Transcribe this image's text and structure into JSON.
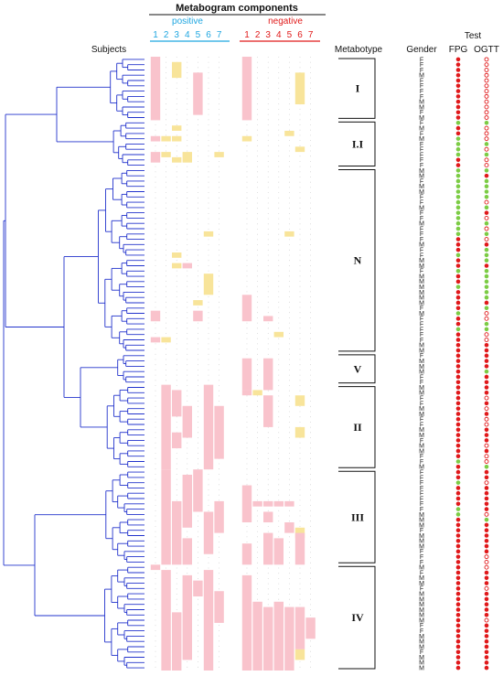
{
  "header": {
    "title": "Metabogram components",
    "positive_label": "positive",
    "negative_label": "negative",
    "positive_numbers": [
      "1",
      "2",
      "3",
      "4",
      "5",
      "6",
      "7"
    ],
    "negative_numbers": [
      "1",
      "2",
      "3",
      "4",
      "5",
      "6",
      "7"
    ],
    "subjects_label": "Subjects",
    "metabotype_label": "Metabotype",
    "gender_label": "Gender",
    "test_label": "Test",
    "fpg_label": "FPG",
    "ogtt_label": "OGTT"
  },
  "colors": {
    "positive": "#1fa6e0",
    "negative": "#e01b1b",
    "dendrogram": "#2233cc",
    "pink": "#f9c3cc",
    "yellow": "#f8e49a",
    "dot_red": "#e0191b",
    "dot_green": "#7ccc45"
  },
  "metabotypes": [
    {
      "label": "I",
      "start": 0,
      "end": 12
    },
    {
      "label": "I.I",
      "start": 12,
      "end": 21
    },
    {
      "label": "N",
      "start": 21,
      "end": 56
    },
    {
      "label": "V",
      "start": 56,
      "end": 62
    },
    {
      "label": "II",
      "start": 62,
      "end": 78
    },
    {
      "label": "III",
      "start": 78,
      "end": 96
    },
    {
      "label": "IV",
      "start": 96,
      "end": 116
    }
  ],
  "genders": [
    "F",
    "F",
    "F",
    "M",
    "F",
    "F",
    "F",
    "F",
    "M",
    "M",
    "F",
    "M",
    "F",
    "M",
    "F",
    "M",
    "F",
    "F",
    "F",
    "F",
    "F",
    "M",
    "M",
    "F",
    "M",
    "M",
    "F",
    "F",
    "M",
    "F",
    "F",
    "M",
    "F",
    "F",
    "F",
    "M",
    "F",
    "F",
    "M",
    "M",
    "F",
    "M",
    "M",
    "M",
    "M",
    "M",
    "M",
    "F",
    "M",
    "F",
    "F",
    "F",
    "F",
    "F",
    "M",
    "M",
    "F",
    "M",
    "M",
    "M",
    "F",
    "F",
    "M",
    "M",
    "F",
    "F",
    "M",
    "M",
    "F",
    "F",
    "M",
    "M",
    "F",
    "M",
    "M",
    "F",
    "F",
    "M",
    "F",
    "F",
    "F",
    "F",
    "F",
    "F",
    "F",
    "F",
    "M",
    "M",
    "M",
    "F",
    "M",
    "M",
    "M",
    "F",
    "F",
    "F",
    "M",
    "F",
    "M",
    "M",
    "F",
    "M",
    "M",
    "M",
    "M",
    "M",
    "M",
    "F",
    "F",
    "M",
    "M",
    "M",
    "F",
    "M",
    "M",
    "M"
  ],
  "fpg": [
    "R",
    "R",
    "R",
    "R",
    "R",
    "R",
    "R",
    "R",
    "R",
    "R",
    "R",
    "R",
    "G",
    "R",
    "R",
    "G",
    "G",
    "G",
    "G",
    "R",
    "R",
    "G",
    "G",
    "G",
    "G",
    "G",
    "G",
    "G",
    "G",
    "G",
    "G",
    "G",
    "G",
    "G",
    "R",
    "R",
    "R",
    "G",
    "R",
    "R",
    "G",
    "R",
    "R",
    "G",
    "R",
    "R",
    "R",
    "R",
    "G",
    "R",
    "R",
    "G",
    "R",
    "R",
    "R",
    "R",
    "R",
    "R",
    "R",
    "R",
    "R",
    "R",
    "R",
    "R",
    "R",
    "R",
    "R",
    "R",
    "R",
    "R",
    "R",
    "R",
    "R",
    "R",
    "R",
    "R",
    "G",
    "R",
    "R",
    "R",
    "G",
    "R",
    "R",
    "R",
    "R",
    "G",
    "G",
    "R",
    "R",
    "R",
    "R",
    "R",
    "R",
    "R",
    "R",
    "R",
    "R",
    "R",
    "R",
    "R",
    "R",
    "R",
    "R",
    "R",
    "R",
    "R",
    "R",
    "R",
    "R",
    "R",
    "R",
    "R",
    "R",
    "R",
    "R",
    "R"
  ],
  "ogtt": [
    "O",
    "O",
    "O",
    "O",
    "O",
    "O",
    "O",
    "O",
    "O",
    "O",
    "O",
    "O",
    "G",
    "O",
    "O",
    "O",
    "G",
    "O",
    "G",
    "O",
    "O",
    "G",
    "R",
    "G",
    "G",
    "G",
    "G",
    "O",
    "G",
    "R",
    "O",
    "G",
    "O",
    "G",
    "O",
    "R",
    "G",
    "G",
    "G",
    "R",
    "G",
    "G",
    "G",
    "G",
    "G",
    "G",
    "R",
    "G",
    "O",
    "O",
    "G",
    "G",
    "O",
    "O",
    "R",
    "R",
    "R",
    "R",
    "R",
    "G",
    "R",
    "R",
    "R",
    "R",
    "O",
    "R",
    "O",
    "R",
    "O",
    "O",
    "R",
    "R",
    "R",
    "O",
    "R",
    "O",
    "O",
    "G",
    "R",
    "R",
    "O",
    "R",
    "R",
    "R",
    "R",
    "R",
    "O",
    "G",
    "R",
    "R",
    "R",
    "R",
    "R",
    "R",
    "O",
    "O",
    "O",
    "R",
    "R",
    "R",
    "O",
    "R",
    "R",
    "R",
    "R",
    "R",
    "O",
    "R",
    "R",
    "R",
    "R",
    "R",
    "R",
    "R",
    "R",
    "R"
  ],
  "metabogram": {
    "pos": [
      {
        "type": "P",
        "col": 1,
        "rows": [
          0,
          12
        ]
      },
      {
        "type": "Y",
        "col": 3,
        "rows": [
          1,
          4
        ]
      },
      {
        "type": "P",
        "col": 5,
        "rows": [
          3,
          11
        ]
      },
      {
        "type": "Y",
        "col": 3,
        "rows": [
          13,
          14
        ]
      },
      {
        "type": "P",
        "col": 1,
        "rows": [
          15,
          16
        ]
      },
      {
        "type": "Y",
        "col": 2,
        "rows": [
          15,
          16
        ]
      },
      {
        "type": "Y",
        "col": 3,
        "rows": [
          15,
          16
        ]
      },
      {
        "type": "P",
        "col": 1,
        "rows": [
          18,
          20
        ]
      },
      {
        "type": "Y",
        "col": 2,
        "rows": [
          18,
          19
        ]
      },
      {
        "type": "Y",
        "col": 4,
        "rows": [
          18,
          20
        ]
      },
      {
        "type": "Y",
        "col": 3,
        "rows": [
          19,
          20
        ]
      },
      {
        "type": "Y",
        "col": 7,
        "rows": [
          18,
          19
        ]
      },
      {
        "type": "Y",
        "col": 6,
        "rows": [
          33,
          34
        ]
      },
      {
        "type": "Y",
        "col": 3,
        "rows": [
          37,
          38
        ]
      },
      {
        "type": "Y",
        "col": 3,
        "rows": [
          39,
          40
        ]
      },
      {
        "type": "P",
        "col": 4,
        "rows": [
          39,
          40
        ]
      },
      {
        "type": "Y",
        "col": 6,
        "rows": [
          41,
          45
        ]
      },
      {
        "type": "Y",
        "col": 5,
        "rows": [
          46,
          47
        ]
      },
      {
        "type": "P",
        "col": 1,
        "rows": [
          48,
          50
        ]
      },
      {
        "type": "P",
        "col": 5,
        "rows": [
          48,
          50
        ]
      },
      {
        "type": "P",
        "col": 1,
        "rows": [
          53,
          54
        ]
      },
      {
        "type": "Y",
        "col": 2,
        "rows": [
          53,
          54
        ]
      },
      {
        "type": "P",
        "col": 2,
        "rows": [
          62,
          78
        ]
      },
      {
        "type": "P",
        "col": 3,
        "rows": [
          63,
          68
        ]
      },
      {
        "type": "P",
        "col": 4,
        "rows": [
          66,
          72
        ]
      },
      {
        "type": "P",
        "col": 3,
        "rows": [
          71,
          74
        ]
      },
      {
        "type": "P",
        "col": 6,
        "rows": [
          62,
          78
        ]
      },
      {
        "type": "P",
        "col": 7,
        "rows": [
          66,
          76
        ]
      },
      {
        "type": "P",
        "col": 2,
        "rows": [
          78,
          96
        ]
      },
      {
        "type": "P",
        "col": 3,
        "rows": [
          84,
          96
        ]
      },
      {
        "type": "P",
        "col": 4,
        "rows": [
          79,
          89
        ]
      },
      {
        "type": "P",
        "col": 5,
        "rows": [
          78,
          86
        ]
      },
      {
        "type": "P",
        "col": 4,
        "rows": [
          91,
          96
        ]
      },
      {
        "type": "P",
        "col": 6,
        "rows": [
          86,
          94
        ]
      },
      {
        "type": "P",
        "col": 7,
        "rows": [
          84,
          90
        ]
      },
      {
        "type": "P",
        "col": 1,
        "rows": [
          96,
          97
        ]
      },
      {
        "type": "P",
        "col": 2,
        "rows": [
          97,
          116
        ]
      },
      {
        "type": "P",
        "col": 3,
        "rows": [
          105,
          116
        ]
      },
      {
        "type": "P",
        "col": 4,
        "rows": [
          98,
          114
        ]
      },
      {
        "type": "P",
        "col": 5,
        "rows": [
          99,
          102
        ]
      },
      {
        "type": "P",
        "col": 6,
        "rows": [
          97,
          116
        ]
      },
      {
        "type": "P",
        "col": 7,
        "rows": [
          101,
          107
        ]
      }
    ],
    "neg": [
      {
        "type": "P",
        "col": 1,
        "rows": [
          0,
          12
        ]
      },
      {
        "type": "Y",
        "col": 6,
        "rows": [
          3,
          9
        ]
      },
      {
        "type": "Y",
        "col": 1,
        "rows": [
          15,
          16
        ]
      },
      {
        "type": "Y",
        "col": 5,
        "rows": [
          14,
          15
        ]
      },
      {
        "type": "Y",
        "col": 6,
        "rows": [
          17,
          18
        ]
      },
      {
        "type": "Y",
        "col": 5,
        "rows": [
          33,
          34
        ]
      },
      {
        "type": "P",
        "col": 1,
        "rows": [
          45,
          50
        ]
      },
      {
        "type": "P",
        "col": 3,
        "rows": [
          49,
          50
        ]
      },
      {
        "type": "Y",
        "col": 4,
        "rows": [
          52,
          53
        ]
      },
      {
        "type": "P",
        "col": 1,
        "rows": [
          57,
          63
        ]
      },
      {
        "type": "P",
        "col": 3,
        "rows": [
          57,
          63
        ]
      },
      {
        "type": "Y",
        "col": 2,
        "rows": [
          63,
          64
        ]
      },
      {
        "type": "P",
        "col": 1,
        "rows": [
          63,
          64
        ]
      },
      {
        "type": "P",
        "col": 3,
        "rows": [
          64,
          70
        ]
      },
      {
        "type": "Y",
        "col": 6,
        "rows": [
          64,
          66
        ]
      },
      {
        "type": "Y",
        "col": 6,
        "rows": [
          70,
          72
        ]
      },
      {
        "type": "P",
        "col": 1,
        "rows": [
          81,
          88
        ]
      },
      {
        "type": "P",
        "col": 2,
        "rows": [
          84,
          85
        ]
      },
      {
        "type": "P",
        "col": 3,
        "rows": [
          84,
          85
        ]
      },
      {
        "type": "P",
        "col": 4,
        "rows": [
          84,
          85
        ]
      },
      {
        "type": "P",
        "col": 5,
        "rows": [
          84,
          85
        ]
      },
      {
        "type": "P",
        "col": 3,
        "rows": [
          86,
          88
        ]
      },
      {
        "type": "P",
        "col": 5,
        "rows": [
          88,
          90
        ]
      },
      {
        "type": "Y",
        "col": 6,
        "rows": [
          89,
          91
        ]
      },
      {
        "type": "P",
        "col": 1,
        "rows": [
          92,
          96
        ]
      },
      {
        "type": "P",
        "col": 3,
        "rows": [
          90,
          96
        ]
      },
      {
        "type": "P",
        "col": 4,
        "rows": [
          91,
          96
        ]
      },
      {
        "type": "P",
        "col": 6,
        "rows": [
          90,
          96
        ]
      },
      {
        "type": "P",
        "col": 1,
        "rows": [
          98,
          116
        ]
      },
      {
        "type": "P",
        "col": 2,
        "rows": [
          103,
          116
        ]
      },
      {
        "type": "P",
        "col": 3,
        "rows": [
          104,
          116
        ]
      },
      {
        "type": "P",
        "col": 4,
        "rows": [
          103,
          116
        ]
      },
      {
        "type": "P",
        "col": 5,
        "rows": [
          104,
          116
        ]
      },
      {
        "type": "P",
        "col": 6,
        "rows": [
          104,
          112
        ]
      },
      {
        "type": "Y",
        "col": 6,
        "rows": [
          112,
          114
        ]
      },
      {
        "type": "P",
        "col": 7,
        "rows": [
          106,
          110
        ]
      }
    ]
  }
}
